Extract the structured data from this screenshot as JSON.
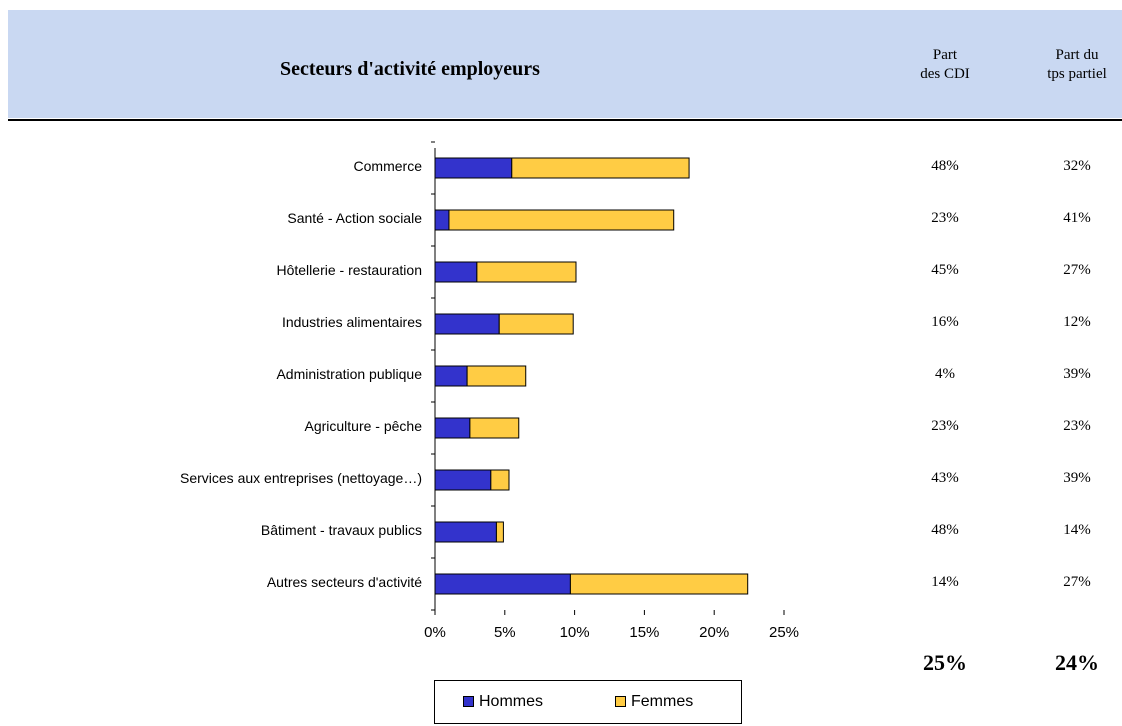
{
  "header": {
    "title": "Secteurs d'activité employeurs",
    "col_cdi": [
      "Part",
      "des CDI"
    ],
    "col_tp": [
      "Part du",
      "tps partiel"
    ]
  },
  "chart_data": {
    "type": "bar",
    "orientation": "horizontal",
    "stacked": true,
    "categories": [
      "Commerce",
      "Santé - Action sociale",
      "Hôtellerie - restauration",
      "Industries alimentaires",
      "Administration publique",
      "Agriculture - pêche",
      "Services aux entreprises (nettoyage…)",
      "Bâtiment - travaux publics",
      "Autres secteurs d'activité"
    ],
    "series": [
      {
        "name": "Hommes",
        "color": "#3333cc",
        "values": [
          5.5,
          1.0,
          3.0,
          4.6,
          2.3,
          2.5,
          4.0,
          4.4,
          9.7
        ]
      },
      {
        "name": "Femmes",
        "color": "#ffcc44",
        "values": [
          12.7,
          16.1,
          7.1,
          5.3,
          4.2,
          3.5,
          1.3,
          0.5,
          12.7
        ]
      }
    ],
    "xlim": [
      0,
      25
    ],
    "xticks": [
      "0%",
      "5%",
      "10%",
      "15%",
      "20%",
      "25%"
    ],
    "legend_position": "bottom",
    "grid": false
  },
  "table": {
    "part_cdi": [
      "48%",
      "23%",
      "45%",
      "16%",
      "4%",
      "23%",
      "43%",
      "48%",
      "14%"
    ],
    "part_tps_partiel": [
      "32%",
      "41%",
      "27%",
      "12%",
      "39%",
      "23%",
      "39%",
      "14%",
      "27%"
    ],
    "total_cdi": "25%",
    "total_tps_partiel": "24%"
  }
}
